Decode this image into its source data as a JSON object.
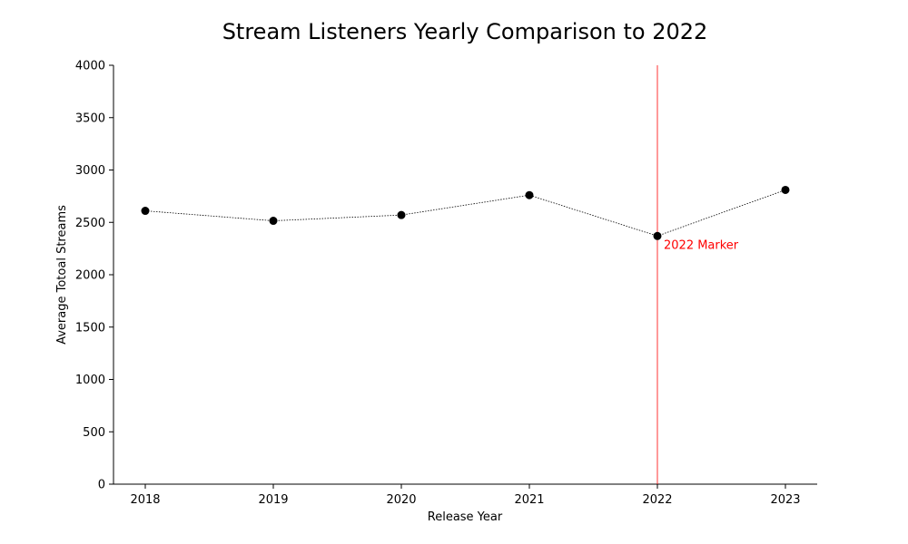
{
  "chart_data": {
    "type": "line",
    "title": "Stream Listeners Yearly Comparison to 2022",
    "xlabel": "Release Year",
    "ylabel": "Average Totoal Streams",
    "categories": [
      "2018",
      "2019",
      "2020",
      "2021",
      "2022",
      "2023"
    ],
    "series": [
      {
        "values": [
          2610,
          2515,
          2570,
          2760,
          2370,
          2810
        ],
        "color": "#000000",
        "line_style": "dotted",
        "marker": "circle"
      }
    ],
    "ylim": [
      0,
      4000
    ],
    "yticks": [
      0,
      500,
      1000,
      1500,
      2000,
      2500,
      3000,
      3500,
      4000
    ],
    "grid": false,
    "annotations": [
      {
        "type": "vertical-line",
        "x": "2022",
        "label": "2022 Marker",
        "color": "#ff0000"
      }
    ]
  }
}
